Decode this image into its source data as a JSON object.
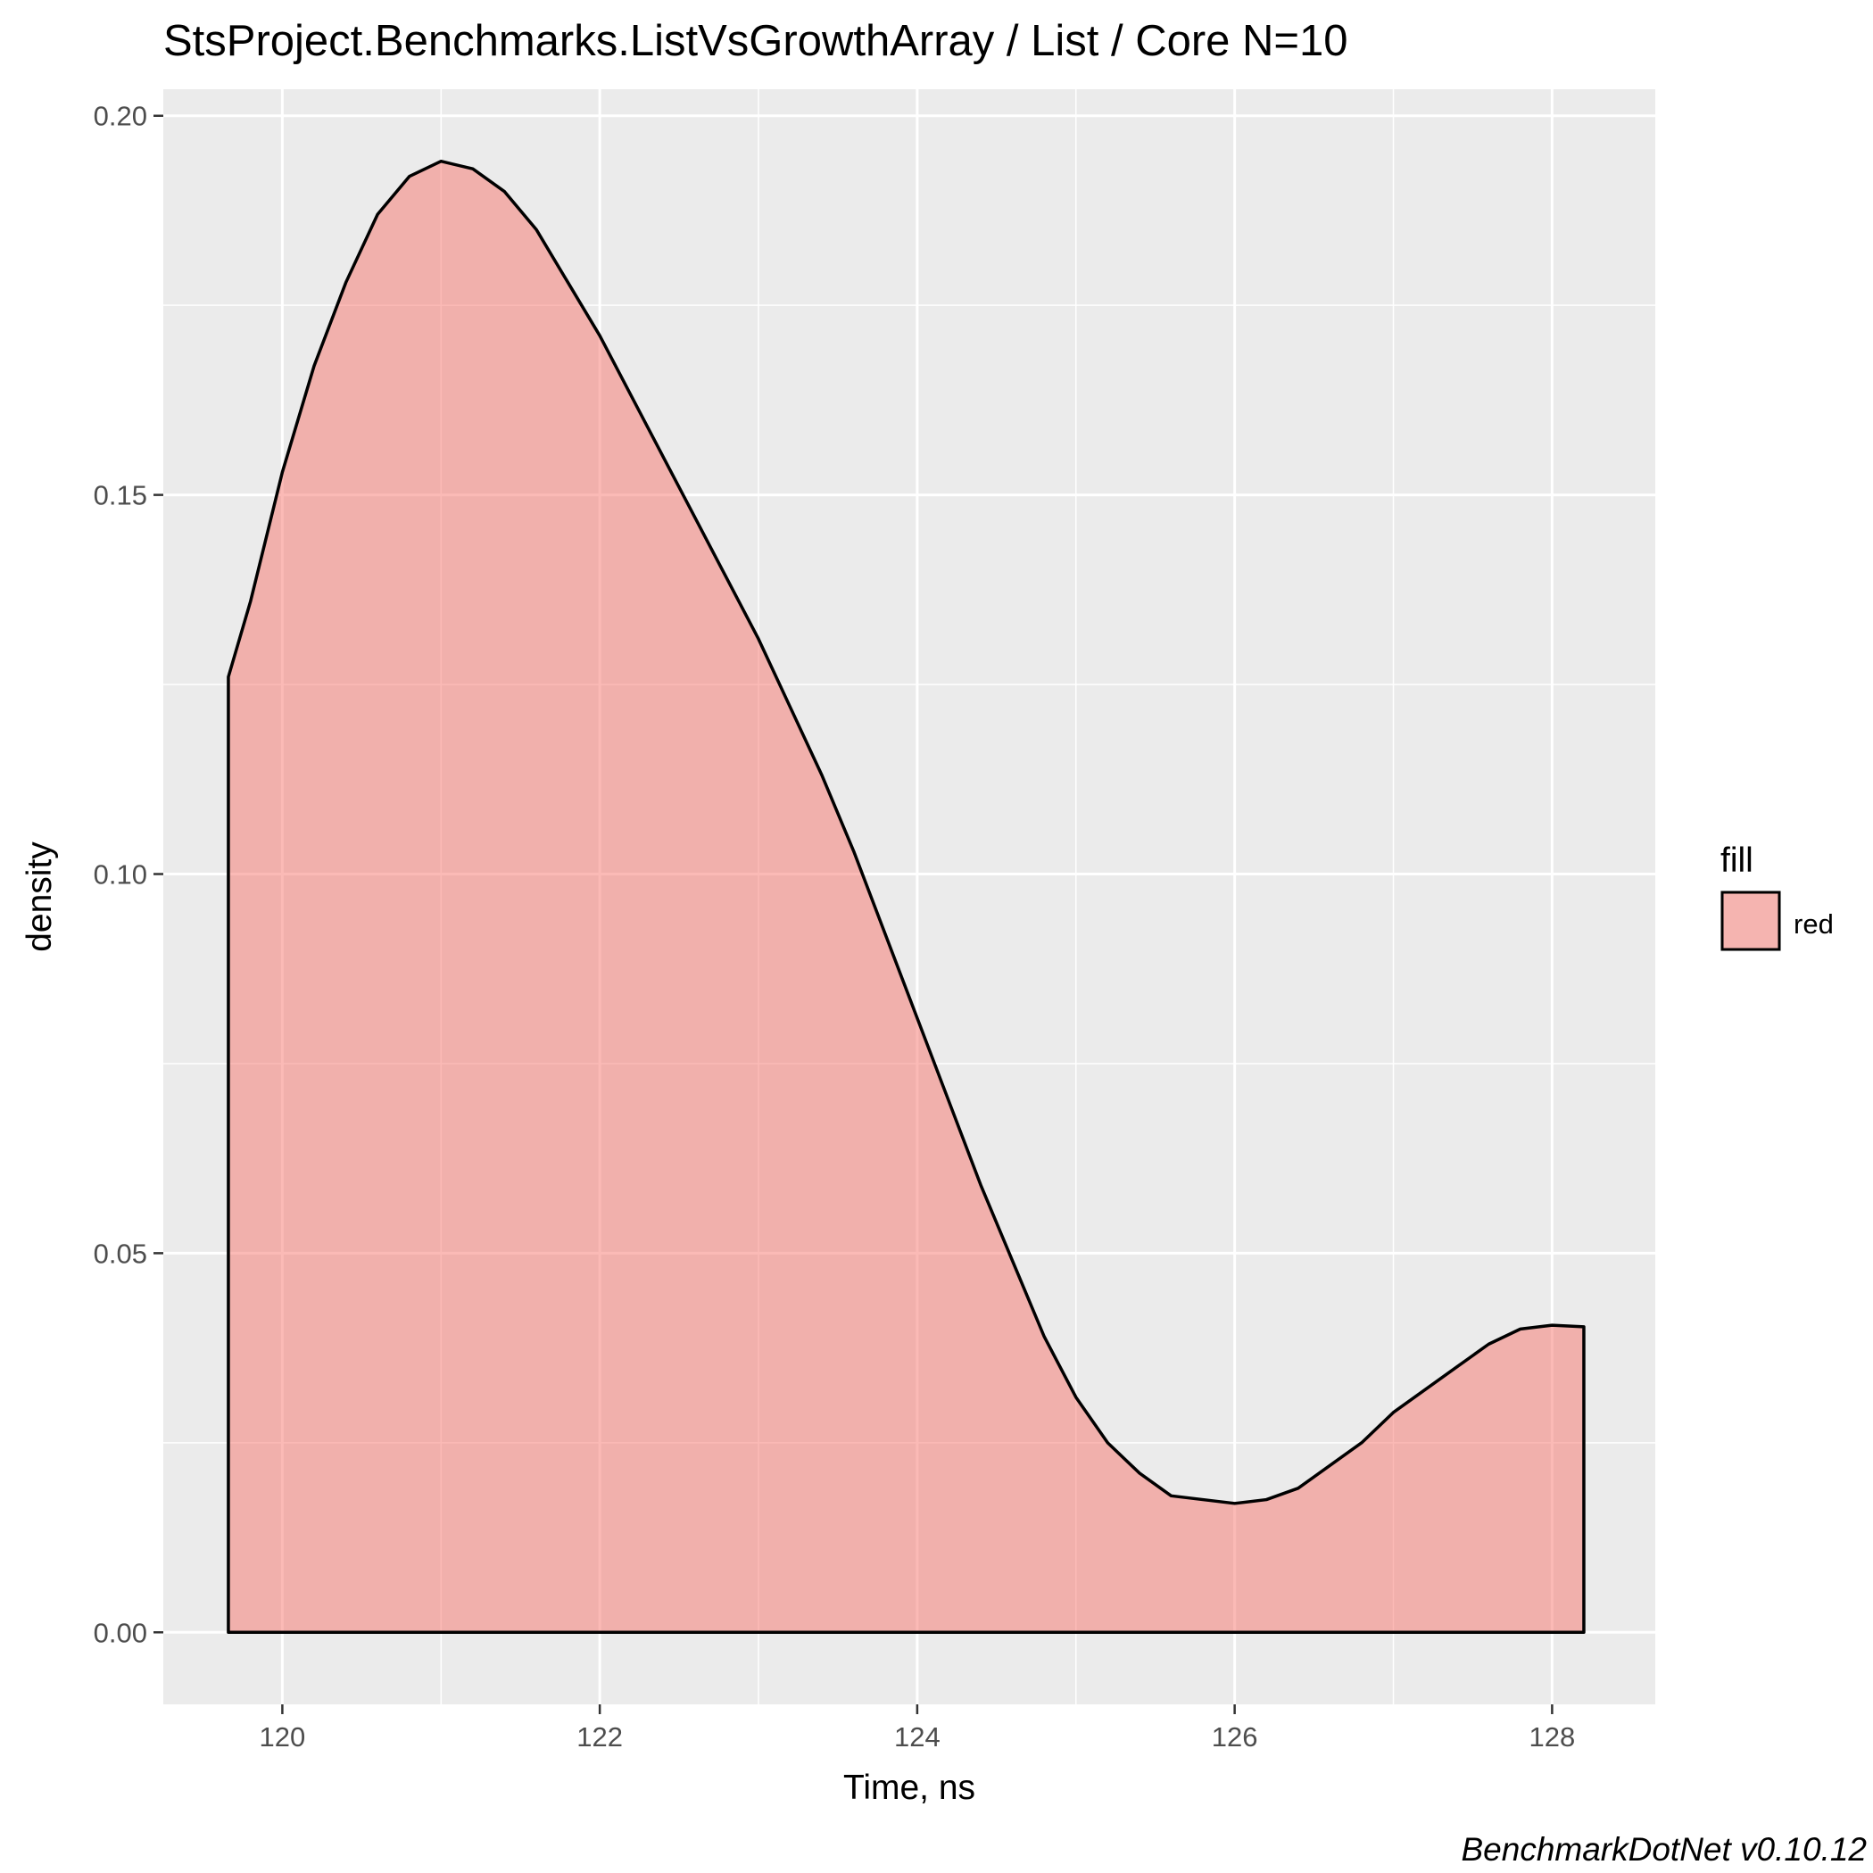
{
  "chart_data": {
    "type": "area",
    "title": "StsProject.Benchmarks.ListVsGrowthArray / List / Core N=10",
    "xlabel": "Time, ns",
    "ylabel": "density",
    "caption": "BenchmarkDotNet v0.10.12",
    "xlim": [
      119.25,
      128.65
    ],
    "ylim": [
      -0.0095,
      0.2035
    ],
    "x_ticks": [
      120,
      122,
      124,
      126,
      128
    ],
    "x_tick_labels": [
      "120",
      "122",
      "124",
      "126",
      "128"
    ],
    "y_ticks": [
      0.0,
      0.05,
      0.1,
      0.15,
      0.2
    ],
    "y_tick_labels": [
      "0.00",
      "0.05",
      "0.10",
      "0.15",
      "0.20"
    ],
    "grid": true,
    "legend": {
      "title": "fill",
      "placement": "right",
      "entries": [
        {
          "label": "red",
          "color": "#f8766d"
        }
      ]
    },
    "series": [
      {
        "fill_color": "#f8766d",
        "fill_opacity": 0.5,
        "line_color": "#000000",
        "x": [
          119.66,
          119.8,
          120.0,
          120.2,
          120.4,
          120.6,
          120.8,
          121.0,
          121.2,
          121.4,
          121.6,
          121.8,
          122.0,
          122.2,
          122.4,
          122.6,
          122.8,
          123.0,
          123.2,
          123.4,
          123.6,
          123.8,
          124.0,
          124.2,
          124.4,
          124.6,
          124.8,
          125.0,
          125.2,
          125.4,
          125.6,
          125.8,
          126.0,
          126.2,
          126.4,
          126.6,
          126.8,
          127.0,
          127.2,
          127.4,
          127.6,
          127.8,
          128.0,
          128.2
        ],
        "y": [
          0.126,
          0.136,
          0.153,
          0.167,
          0.178,
          0.187,
          0.192,
          0.194,
          0.193,
          0.19,
          0.185,
          0.178,
          0.171,
          0.163,
          0.155,
          0.147,
          0.139,
          0.131,
          0.122,
          0.113,
          0.103,
          0.092,
          0.081,
          0.07,
          0.059,
          0.049,
          0.039,
          0.031,
          0.025,
          0.021,
          0.018,
          0.0175,
          0.017,
          0.0175,
          0.019,
          0.022,
          0.025,
          0.029,
          0.032,
          0.035,
          0.038,
          0.04,
          0.0405,
          0.0403
        ]
      }
    ]
  }
}
